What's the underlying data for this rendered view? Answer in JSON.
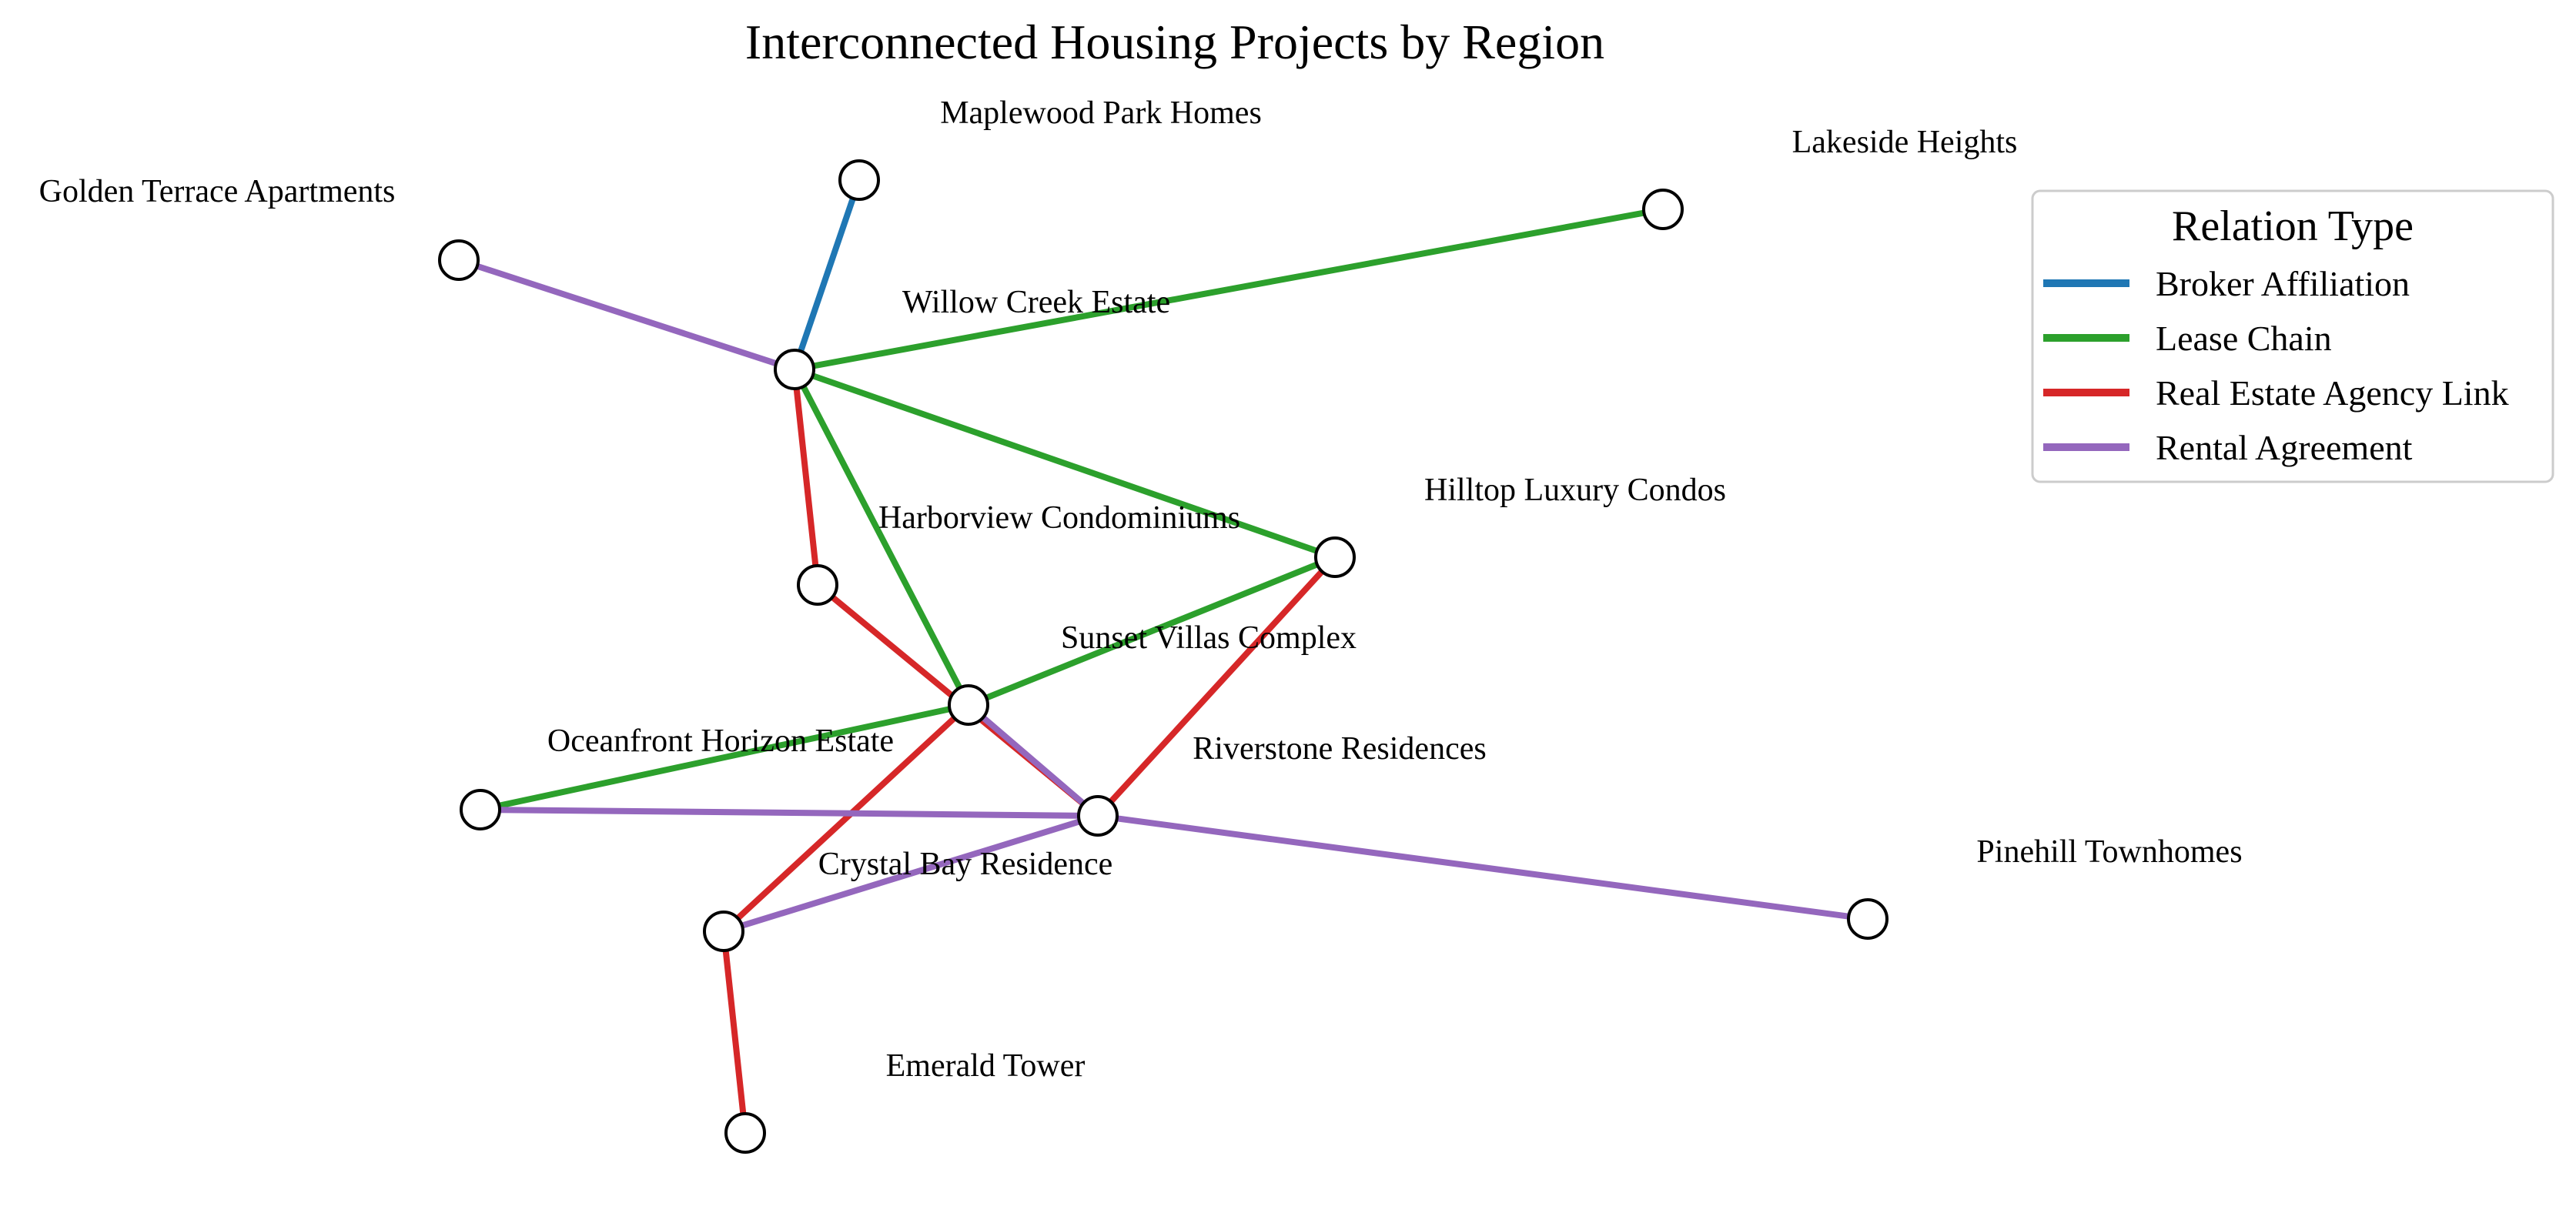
{
  "title": "Interconnected Housing Projects by Region",
  "legend": {
    "title": "Relation Type",
    "items": [
      {
        "key": "broker",
        "label": "Broker Affiliation",
        "color": "#1f77b4"
      },
      {
        "key": "lease",
        "label": "Lease Chain",
        "color": "#2ca02c"
      },
      {
        "key": "agency",
        "label": "Real Estate Agency Link",
        "color": "#d62728"
      },
      {
        "key": "rental",
        "label": "Rental Agreement",
        "color": "#9467bd"
      }
    ]
  },
  "nodes": [
    {
      "id": "maplewood",
      "label": "Maplewood Park Homes"
    },
    {
      "id": "lakeside",
      "label": "Lakeside Heights"
    },
    {
      "id": "golden",
      "label": "Golden Terrace Apartments"
    },
    {
      "id": "willow",
      "label": "Willow Creek Estate"
    },
    {
      "id": "hilltop",
      "label": "Hilltop Luxury Condos"
    },
    {
      "id": "harborview",
      "label": "Harborview Condominiums"
    },
    {
      "id": "sunset",
      "label": "Sunset Villas Complex"
    },
    {
      "id": "oceanfront",
      "label": "Oceanfront Horizon Estate"
    },
    {
      "id": "riverstone",
      "label": "Riverstone Residences"
    },
    {
      "id": "crystal",
      "label": "Crystal Bay Residence"
    },
    {
      "id": "pinehill",
      "label": "Pinehill Townhomes"
    },
    {
      "id": "emerald",
      "label": "Emerald Tower"
    }
  ],
  "edges": [
    {
      "source": "willow",
      "target": "maplewood",
      "type": "broker"
    },
    {
      "source": "golden",
      "target": "willow",
      "type": "rental"
    },
    {
      "source": "willow",
      "target": "lakeside",
      "type": "lease"
    },
    {
      "source": "willow",
      "target": "hilltop",
      "type": "lease"
    },
    {
      "source": "willow",
      "target": "sunset",
      "type": "lease"
    },
    {
      "source": "willow",
      "target": "harborview",
      "type": "agency"
    },
    {
      "source": "harborview",
      "target": "riverstone",
      "type": "agency"
    },
    {
      "source": "hilltop",
      "target": "sunset",
      "type": "lease"
    },
    {
      "source": "hilltop",
      "target": "riverstone",
      "type": "agency"
    },
    {
      "source": "sunset",
      "target": "oceanfront",
      "type": "lease"
    },
    {
      "source": "sunset",
      "target": "riverstone",
      "type": "rental"
    },
    {
      "source": "sunset",
      "target": "crystal",
      "type": "agency"
    },
    {
      "source": "oceanfront",
      "target": "riverstone",
      "type": "rental"
    },
    {
      "source": "riverstone",
      "target": "crystal",
      "type": "rental"
    },
    {
      "source": "riverstone",
      "target": "pinehill",
      "type": "rental"
    },
    {
      "source": "crystal",
      "target": "emerald",
      "type": "agency"
    }
  ]
}
